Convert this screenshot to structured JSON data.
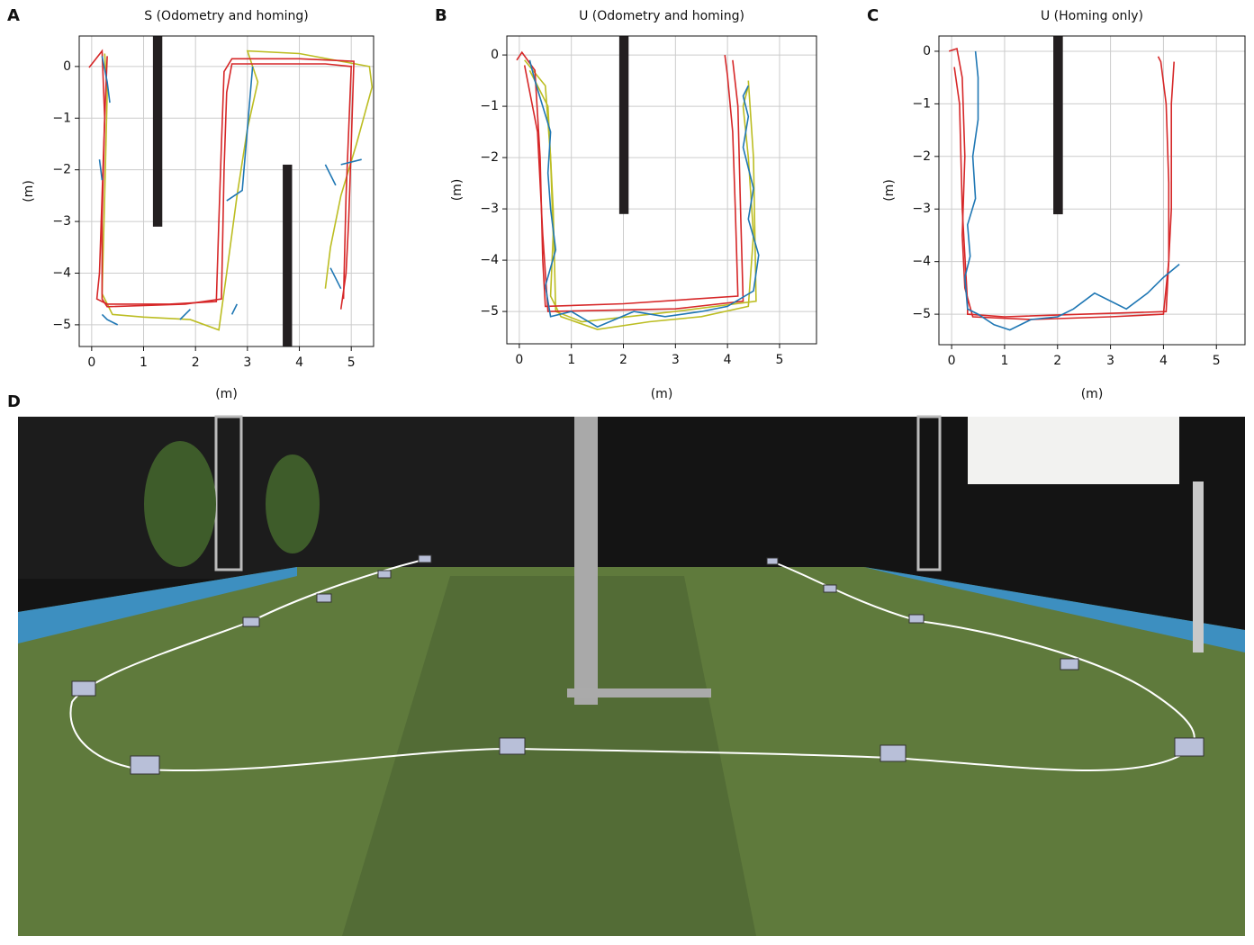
{
  "chart_data": [
    {
      "type": "line",
      "panel": "A",
      "title": "S (Odometry and homing)",
      "xlabel": "(m)",
      "ylabel": "(m)",
      "xlim": [
        -0.24,
        5.43
      ],
      "ylim": [
        -5.42,
        0.59
      ],
      "xticks": [
        0,
        1,
        2,
        3,
        4,
        5
      ],
      "yticks": [
        0,
        {
          "value": -1,
          "label": "−1"
        },
        {
          "value": -2,
          "label": "−2"
        },
        {
          "value": -3,
          "label": "−3"
        },
        {
          "value": -4,
          "label": "−4"
        },
        {
          "value": -5,
          "label": "−5"
        }
      ],
      "grid": true,
      "obstacles": [
        {
          "x": [
            1.18,
            1.36
          ],
          "y": [
            -3.1,
            0.59
          ]
        },
        {
          "x": [
            3.68,
            3.86
          ],
          "y": [
            -5.42,
            -1.9
          ]
        }
      ],
      "series": [
        {
          "color": "#bcbd22",
          "x": [
            0.25,
            0.3,
            0.25,
            0.2,
            0.4,
            1.0,
            1.9,
            2.45,
            2.6,
            2.8,
            3.0,
            3.2,
            3.0,
            4.0,
            5.35,
            5.4,
            5.1,
            4.8,
            4.6,
            4.5
          ],
          "values": [
            0.25,
            -0.5,
            -2.5,
            -4.4,
            -4.8,
            -4.85,
            -4.9,
            -5.1,
            -4.0,
            -2.5,
            -1.2,
            -0.3,
            0.3,
            0.25,
            0,
            -0.4,
            -1.5,
            -2.5,
            -3.5,
            -4.3
          ]
        },
        {
          "color": "#d62728",
          "x": [
            -0.05,
            0.2,
            0.25,
            0.2,
            0.15,
            0.1,
            0.3,
            1.5,
            2.4,
            2.45,
            2.5,
            2.55,
            2.7,
            4.0,
            5.05,
            5.0,
            4.95,
            4.9,
            4.8
          ],
          "values": [
            -0.02,
            0.3,
            -1,
            -2.5,
            -4,
            -4.5,
            -4.6,
            -4.6,
            -4.55,
            -3,
            -1.5,
            -0.1,
            0.15,
            0.15,
            0.1,
            -1.5,
            -3,
            -4,
            -4.7
          ]
        },
        {
          "color": "#d62728",
          "x": [
            0.3,
            0.25,
            0.2,
            0.2,
            0.3,
            1.8,
            2.5,
            2.55,
            2.6,
            2.7,
            4.5,
            5.0,
            4.9,
            4.85
          ],
          "values": [
            0.2,
            -1,
            -3,
            -4.5,
            -4.65,
            -4.6,
            -4.5,
            -2,
            -0.5,
            0.05,
            0.05,
            0.0,
            -2.5,
            -4.5
          ]
        },
        {
          "color": "#1f77b4",
          "x": [
            0.2,
            0.3,
            0.35,
            null,
            0.15,
            0.2,
            null,
            0.2,
            0.3,
            0.5,
            null,
            1.7,
            1.9,
            null,
            2.7,
            2.8,
            null,
            2.6,
            2.9,
            3.1,
            null,
            4.8,
            5.2,
            null,
            4.6,
            4.8,
            null,
            4.5,
            4.7
          ],
          "values": [
            0.2,
            -0.3,
            -0.7,
            null,
            -1.8,
            -2.2,
            null,
            -4.8,
            -4.9,
            -5.0,
            null,
            -4.9,
            -4.7,
            null,
            -4.8,
            -4.6,
            null,
            -2.6,
            -2.4,
            0,
            null,
            -1.9,
            -1.8,
            null,
            -3.9,
            -4.3,
            null,
            -1.9,
            -2.3
          ]
        }
      ]
    },
    {
      "type": "line",
      "panel": "B",
      "title": "U (Odometry and homing)",
      "xlabel": "(m)",
      "ylabel": "(m)",
      "xlim": [
        -0.24,
        5.71
      ],
      "ylim": [
        -5.63,
        0.37
      ],
      "xticks": [
        0,
        1,
        2,
        3,
        4,
        5
      ],
      "yticks": [
        0,
        {
          "value": -1,
          "label": "−1"
        },
        {
          "value": -2,
          "label": "−2"
        },
        {
          "value": -3,
          "label": "−3"
        },
        {
          "value": -4,
          "label": "−4"
        },
        {
          "value": -5,
          "label": "−5"
        }
      ],
      "grid": true,
      "obstacles": [
        {
          "x": [
            1.92,
            2.1
          ],
          "y": [
            -3.1,
            0.37
          ]
        }
      ],
      "series": [
        {
          "color": "#bcbd22",
          "x": [
            0.1,
            0.5,
            0.6,
            0.65,
            0.6,
            0.8,
            1.5,
            2.5,
            3.5,
            4.4,
            4.5,
            4.4,
            4.3,
            4.4
          ],
          "values": [
            -0.1,
            -0.6,
            -2,
            -3.5,
            -4.7,
            -5.1,
            -5.35,
            -5.2,
            -5.1,
            -4.9,
            -3.5,
            -2,
            -1,
            -0.6
          ]
        },
        {
          "color": "#bcbd22",
          "x": [
            0.2,
            0.55,
            0.65,
            0.7,
            1.2,
            3,
            4.55,
            4.5,
            4.4
          ],
          "values": [
            -0.3,
            -1,
            -3,
            -5.0,
            -5.2,
            -5.0,
            -4.8,
            -2,
            -0.5
          ]
        },
        {
          "color": "#d62728",
          "x": [
            -0.05,
            0.05,
            0.3,
            0.4,
            0.45,
            0.5,
            2.0,
            4.2,
            4.15,
            4.1,
            4.0,
            3.95
          ],
          "values": [
            -0.1,
            0.05,
            -0.3,
            -2,
            -4,
            -4.9,
            -4.85,
            -4.7,
            -3,
            -1.5,
            -0.4,
            0
          ]
        },
        {
          "color": "#d62728",
          "x": [
            0.1,
            0.35,
            0.45,
            0.55,
            3.0,
            4.3,
            4.25,
            4.2,
            4.1
          ],
          "values": [
            -0.2,
            -1.5,
            -3.5,
            -5.0,
            -4.95,
            -4.8,
            -3,
            -1,
            -0.1
          ]
        },
        {
          "color": "#1f77b4",
          "x": [
            0.2,
            0.3,
            0.45,
            0.6,
            0.55,
            0.6,
            0.7,
            0.5,
            0.6,
            1.0,
            1.5,
            2.2,
            2.8,
            3.5,
            4.0,
            4.5,
            4.6,
            4.4,
            4.5,
            4.3,
            4.4,
            4.3,
            4.4
          ],
          "values": [
            -0.1,
            -0.5,
            -1,
            -1.5,
            -2.3,
            -3.0,
            -3.8,
            -4.5,
            -5.1,
            -5.0,
            -5.3,
            -5.0,
            -5.1,
            -5.0,
            -4.9,
            -4.6,
            -3.9,
            -3.2,
            -2.6,
            -1.8,
            -1.2,
            -0.8,
            -0.6
          ]
        }
      ]
    },
    {
      "type": "line",
      "panel": "C",
      "title": "U (Homing only)",
      "xlabel": "(m)",
      "ylabel": "(m)",
      "xlim": [
        -0.24,
        5.54
      ],
      "ylim": [
        -5.58,
        0.29
      ],
      "xticks": [
        0,
        1,
        2,
        3,
        4,
        5
      ],
      "yticks": [
        0,
        {
          "value": -1,
          "label": "−1"
        },
        {
          "value": -2,
          "label": "−2"
        },
        {
          "value": -3,
          "label": "−3"
        },
        {
          "value": -4,
          "label": "−4"
        },
        {
          "value": -5,
          "label": "−5"
        }
      ],
      "grid": true,
      "obstacles": [
        {
          "x": [
            1.92,
            2.1
          ],
          "y": [
            -3.1,
            0.29
          ]
        }
      ],
      "series": [
        {
          "color": "#d62728",
          "x": [
            -0.05,
            0.1,
            0.2,
            0.25,
            0.2,
            0.25,
            0.4,
            1.5,
            3,
            4.0,
            4.1,
            4.1,
            4.05,
            3.95,
            3.9
          ],
          "values": [
            0,
            0.05,
            -0.5,
            -2,
            -3.5,
            -4.5,
            -5.05,
            -5.1,
            -5.05,
            -5.0,
            -4,
            -2.5,
            -1,
            -0.2,
            -0.1
          ]
        },
        {
          "color": "#d62728",
          "x": [
            0.05,
            0.15,
            0.2,
            0.3,
            0.3,
            1.0,
            2.5,
            4.05,
            4.15,
            4.15,
            4.2
          ],
          "values": [
            -0.3,
            -1,
            -3,
            -4.8,
            -5.0,
            -5.05,
            -5.0,
            -4.95,
            -3,
            -1,
            -0.2
          ]
        },
        {
          "color": "#1f77b4",
          "x": [
            0.45,
            0.5,
            0.5,
            0.4,
            0.45,
            0.3,
            0.35,
            0.25,
            0.3,
            0.5,
            0.8,
            1.1,
            1.5,
            2.0,
            2.3,
            2.7,
            3.0,
            3.3,
            3.7,
            4.0,
            4.3
          ],
          "values": [
            0.0,
            -0.5,
            -1.3,
            -2.0,
            -2.8,
            -3.3,
            -3.9,
            -4.3,
            -4.9,
            -5.0,
            -5.2,
            -5.3,
            -5.1,
            -5.05,
            -4.9,
            -4.6,
            -4.75,
            -4.9,
            -4.6,
            -4.3,
            -4.05
          ]
        }
      ]
    }
  ],
  "photo_panel": {
    "label": "D"
  }
}
